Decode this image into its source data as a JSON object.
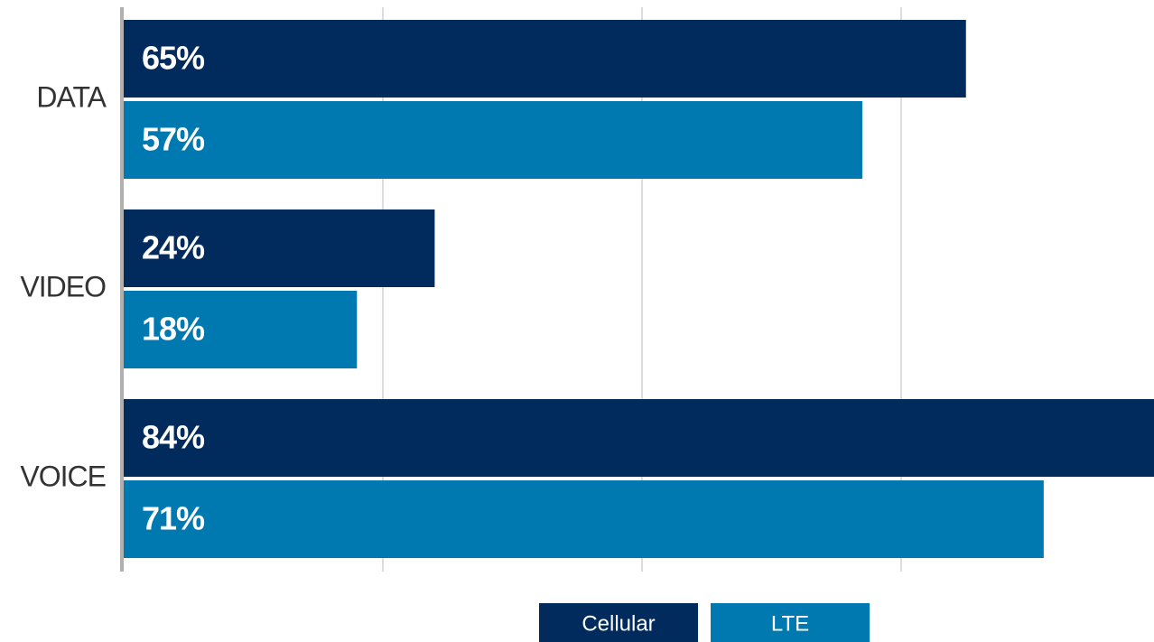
{
  "chart_data": {
    "type": "bar",
    "orientation": "horizontal",
    "categories": [
      "DATA",
      "VIDEO",
      "VOICE"
    ],
    "series": [
      {
        "name": "Cellular",
        "color": "#002b5c",
        "values": [
          65,
          24,
          84
        ],
        "value_labels": [
          "65%",
          "24%",
          "84%"
        ]
      },
      {
        "name": "LTE",
        "color": "#0078b0",
        "values": [
          57,
          18,
          71
        ],
        "value_labels": [
          "57%",
          "18%",
          "71%"
        ]
      }
    ],
    "xlim": [
      0,
      80
    ],
    "xticks": [
      20,
      40,
      60
    ],
    "grid": true,
    "legend": "bottom"
  }
}
